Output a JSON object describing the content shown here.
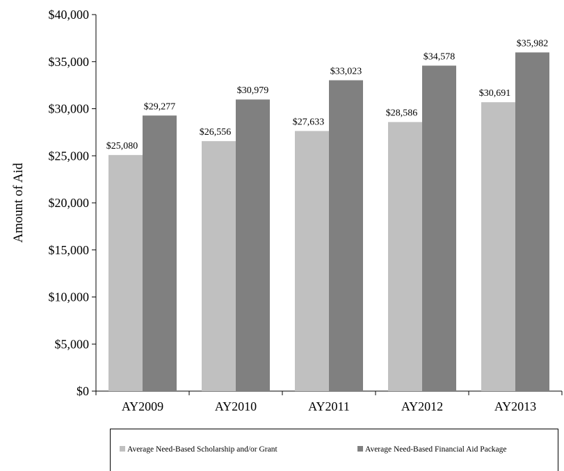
{
  "chart_data": {
    "type": "bar",
    "categories": [
      "AY2009",
      "AY2010",
      "AY2011",
      "AY2012",
      "AY2013"
    ],
    "series": [
      {
        "name": "Average Need-Based Scholarship and/or Grant",
        "values": [
          25080,
          26556,
          27633,
          28586,
          30691
        ],
        "labels": [
          "$25,080",
          "$26,556",
          "$27,633",
          "$28,586",
          "$30,691"
        ],
        "color": "#c0c0c0"
      },
      {
        "name": "Average Need-Based Financial Aid Package",
        "values": [
          29277,
          30979,
          33023,
          34578,
          35982
        ],
        "labels": [
          "$29,277",
          "$30,979",
          "$33,023",
          "$34,578",
          "$35,982"
        ],
        "color": "#808080"
      }
    ],
    "ylabel": "Amount of Aid",
    "ylim": [
      0,
      40000
    ],
    "yticks": [
      0,
      5000,
      10000,
      15000,
      20000,
      25000,
      30000,
      35000,
      40000
    ],
    "ytick_labels": [
      "$0",
      "$5,000",
      "$10,000",
      "$15,000",
      "$20,000",
      "$25,000",
      "$30,000",
      "$35,000",
      "$40,000"
    ],
    "grid": false,
    "legend_position": "bottom"
  }
}
